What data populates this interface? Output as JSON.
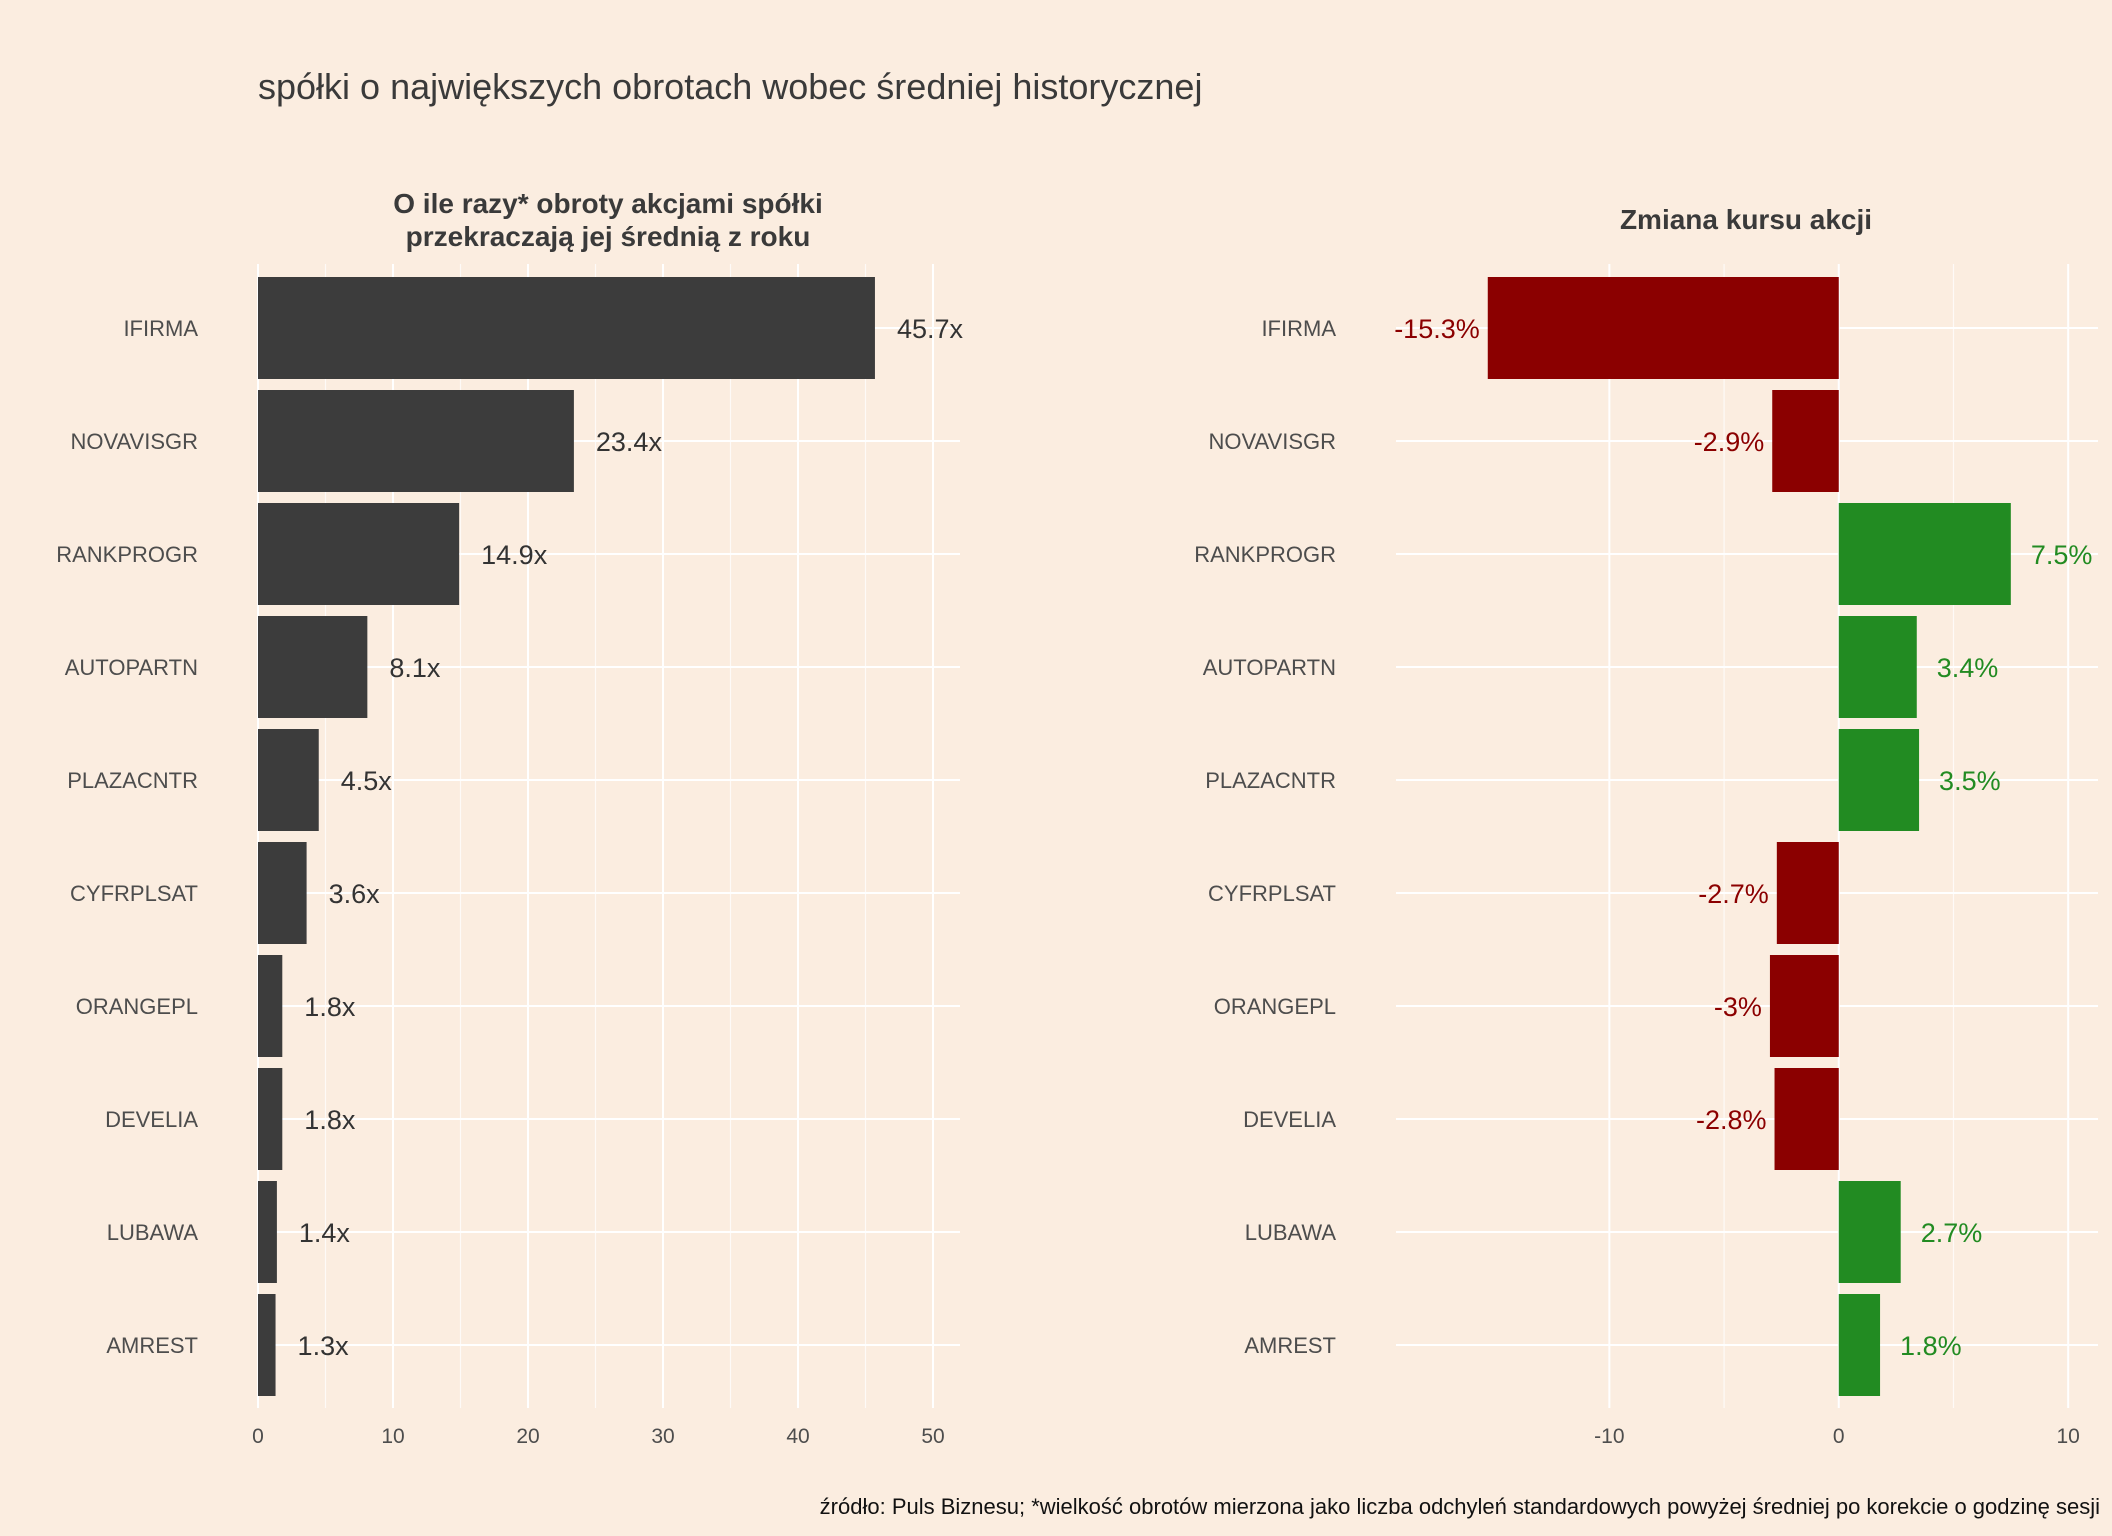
{
  "title": "spółki o największych obrotach wobec średniej historycznej",
  "footer": "źródło: Puls Biznesu; *wielkość obrotów mierzona jako liczba odchyleń standardowych powyżej średniej po korekcie o godzinę sesji",
  "colors": {
    "background": "#FBEDE0",
    "bar_dark": "#3C3C3C",
    "negative": "#8B0000",
    "positive": "#228B22",
    "grid": "#FFFFFF"
  },
  "chart_data": [
    {
      "type": "bar",
      "orientation": "horizontal",
      "title": "O ile razy* obroty akcjami spółki przekraczają jej średnią z roku",
      "title_lines": [
        "O ile razy* obroty akcjami spółki",
        "przekraczają jej średnią z roku"
      ],
      "categories": [
        "IFIRMA",
        "NOVAVISGR",
        "RANKPROGR",
        "AUTOPARTN",
        "PLAZACNTR",
        "CYFRPLSAT",
        "ORANGEPL",
        "DEVELIA",
        "LUBAWA",
        "AMREST"
      ],
      "values": [
        45.7,
        23.4,
        14.9,
        8.1,
        4.5,
        3.6,
        1.8,
        1.8,
        1.4,
        1.3
      ],
      "labels": [
        "45.7x",
        "23.4x",
        "14.9x",
        "8.1x",
        "4.5x",
        "3.6x",
        "1.8x",
        "1.8x",
        "1.4x",
        "1.3x"
      ],
      "xlim": [
        0,
        52
      ],
      "xticks": [
        0,
        10,
        20,
        30,
        40,
        50
      ],
      "xlabel": "",
      "ylabel": "",
      "grid": true,
      "legend": "none"
    },
    {
      "type": "bar",
      "orientation": "horizontal",
      "title": "Zmiana kursu akcji",
      "title_lines": [
        "Zmiana kursu akcji"
      ],
      "categories": [
        "IFIRMA",
        "NOVAVISGR",
        "RANKPROGR",
        "AUTOPARTN",
        "PLAZACNTR",
        "CYFRPLSAT",
        "ORANGEPL",
        "DEVELIA",
        "LUBAWA",
        "AMREST"
      ],
      "values": [
        -15.3,
        -2.9,
        7.5,
        3.4,
        3.5,
        -2.7,
        -3.0,
        -2.8,
        2.7,
        1.8
      ],
      "labels": [
        "-15.3%",
        "-2.9%",
        "7.5%",
        "3.4%",
        "3.5%",
        "-2.7%",
        "-3%",
        "-2.8%",
        "2.7%",
        "1.8%"
      ],
      "xlim": [
        -19.3,
        11.3
      ],
      "xticks": [
        -10,
        0,
        10
      ],
      "xlabel": "",
      "ylabel": "",
      "grid": true,
      "legend": "none"
    }
  ]
}
